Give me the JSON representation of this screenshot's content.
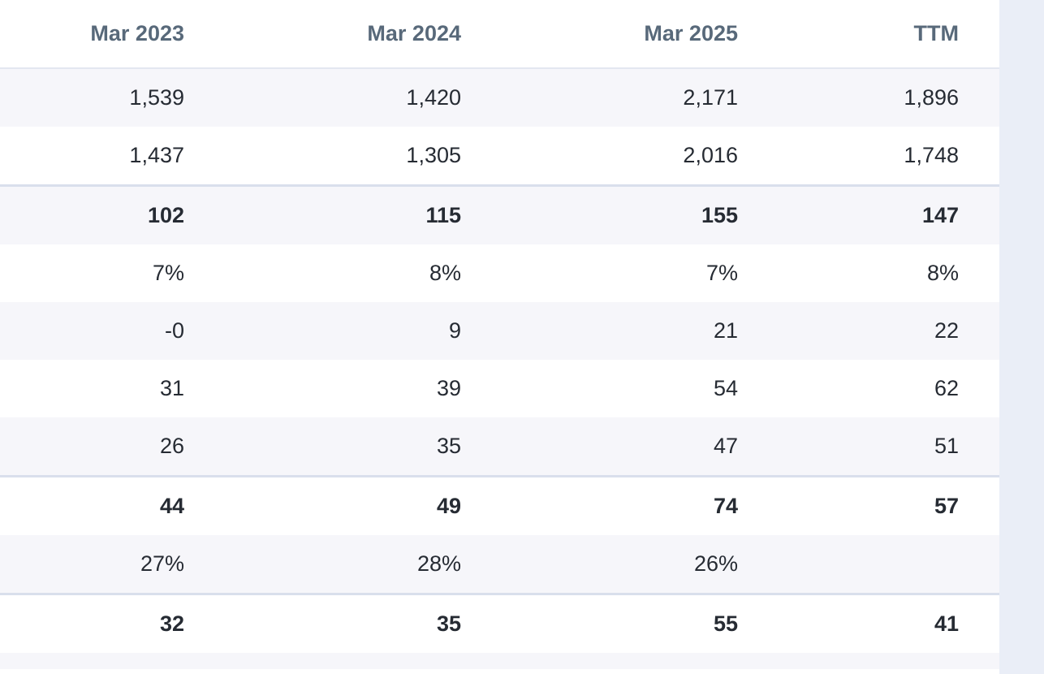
{
  "page": {
    "background_color": "#eaeef7",
    "table_background_color": "#ffffff"
  },
  "colors": {
    "header_text": "#58697a",
    "value_text": "#262b33",
    "shaded_row_bg": "#f6f6fa",
    "emphasis_rule_border": "#d9dfec",
    "header_rule_border": "#e3e7f1"
  },
  "table": {
    "columns": [
      "Mar 2023",
      "Mar 2024",
      "Mar 2025",
      "TTM"
    ],
    "rows": [
      {
        "bold": false,
        "values": [
          "1,539",
          "1,420",
          "2,171",
          "1,896"
        ]
      },
      {
        "bold": false,
        "values": [
          "1,437",
          "1,305",
          "2,016",
          "1,748"
        ]
      },
      {
        "bold": true,
        "values": [
          "102",
          "115",
          "155",
          "147"
        ]
      },
      {
        "bold": false,
        "values": [
          "7%",
          "8%",
          "7%",
          "8%"
        ]
      },
      {
        "bold": false,
        "values": [
          "-0",
          "9",
          "21",
          "22"
        ]
      },
      {
        "bold": false,
        "values": [
          "31",
          "39",
          "54",
          "62"
        ]
      },
      {
        "bold": false,
        "values": [
          "26",
          "35",
          "47",
          "51"
        ]
      },
      {
        "bold": true,
        "values": [
          "44",
          "49",
          "74",
          "57"
        ]
      },
      {
        "bold": false,
        "values": [
          "27%",
          "28%",
          "26%",
          ""
        ]
      },
      {
        "bold": true,
        "values": [
          "32",
          "35",
          "55",
          "41"
        ]
      },
      {
        "bold": false,
        "values": [
          "",
          "",
          "",
          ""
        ]
      }
    ]
  }
}
